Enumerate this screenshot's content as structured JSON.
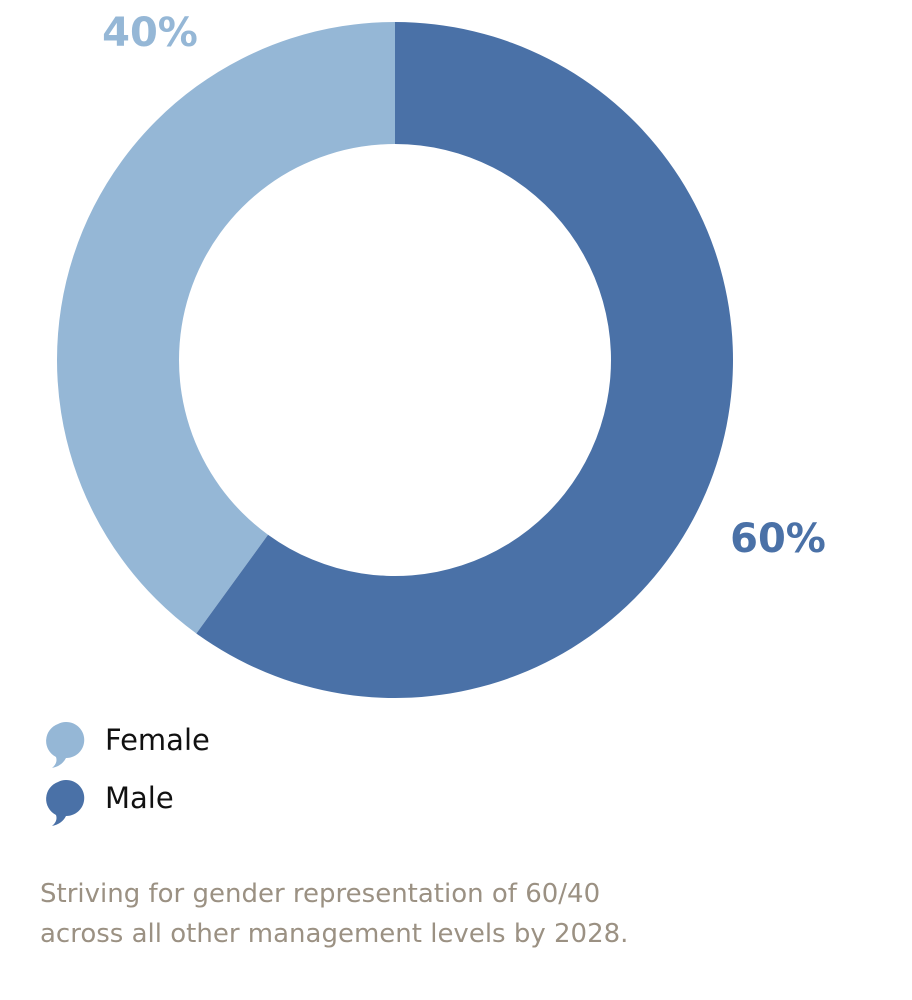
{
  "chart_data": {
    "type": "donut",
    "categories": [
      "Female",
      "Male"
    ],
    "values": [
      40,
      60
    ],
    "value_labels": [
      "40%",
      "60%"
    ],
    "colors": [
      "#95b7d6",
      "#4a71a7"
    ],
    "caption": [
      "Striving for gender representation of 60/40",
      "across all other management levels by 2028."
    ]
  }
}
